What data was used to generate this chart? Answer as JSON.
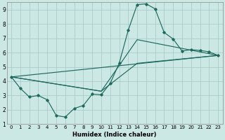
{
  "xlabel": "Humidex (Indice chaleur)",
  "xlim": [
    -0.5,
    23.5
  ],
  "ylim": [
    1,
    9.5
  ],
  "xticks": [
    0,
    1,
    2,
    3,
    4,
    5,
    6,
    7,
    8,
    9,
    10,
    11,
    12,
    13,
    14,
    15,
    16,
    17,
    18,
    19,
    20,
    21,
    22,
    23
  ],
  "yticks": [
    1,
    2,
    3,
    4,
    5,
    6,
    7,
    8,
    9
  ],
  "bg_color": "#cce8e4",
  "grid_color": "#aacccc",
  "line_color": "#1e6b5e",
  "main_x": [
    0,
    1,
    2,
    3,
    4,
    5,
    6,
    7,
    8,
    9,
    10,
    11,
    12,
    13,
    14,
    15,
    16,
    17,
    18,
    19,
    20,
    21,
    22,
    23
  ],
  "main_y": [
    4.3,
    3.5,
    2.9,
    3.0,
    2.7,
    1.6,
    1.5,
    2.1,
    2.3,
    3.1,
    3.05,
    3.85,
    5.25,
    7.55,
    9.35,
    9.4,
    9.05,
    7.4,
    6.95,
    6.1,
    6.2,
    6.15,
    6.05,
    5.8
  ],
  "extra_lines": [
    {
      "x": [
        0,
        23
      ],
      "y": [
        4.3,
        5.8
      ]
    },
    {
      "x": [
        0,
        10,
        14,
        23
      ],
      "y": [
        4.3,
        3.3,
        6.9,
        5.8
      ]
    },
    {
      "x": [
        0,
        10,
        14,
        23
      ],
      "y": [
        4.3,
        3.3,
        5.25,
        5.8
      ]
    }
  ]
}
